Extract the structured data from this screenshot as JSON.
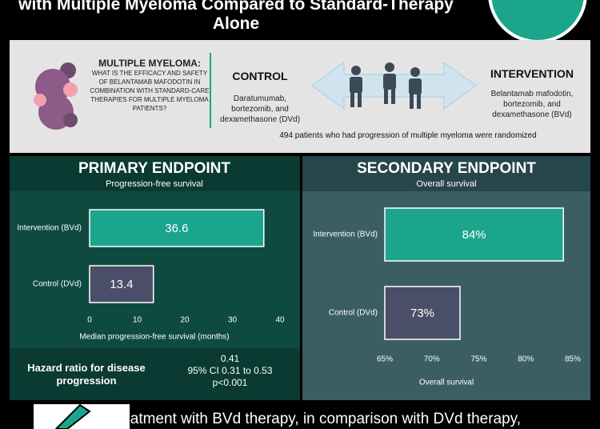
{
  "header": {
    "title": "with Multiple Myeloma Compared to Standard-Therapy Alone"
  },
  "study": {
    "question_title": "MULTIPLE MYELOMA:",
    "question": "WHAT IS THE EFFICACY AND SAFETY OF BELANTAMAB MAFODOTIN IN COMBINATION WITH STANDARD-CARE THERAPIES FOR MULTIPLE MYELOMA PATIENTS?",
    "control_title": "CONTROL",
    "control_text": "Daratumumab, bortezomib, and dexamethasone (DVd)",
    "intervention_title": "INTERVENTION",
    "intervention_text": "Belantamab mafodotin, bortezomib, and dexamethasone (BVd)",
    "population": "494 patients who had progression of multiple myeloma were randomized"
  },
  "chart_data": [
    {
      "type": "bar",
      "orientation": "horizontal",
      "title": "PRIMARY ENDPOINT",
      "subtitle": "Progression-free survival",
      "categories": [
        "Intervention (BVd)",
        "Control (DVd)"
      ],
      "values": [
        36.6,
        13.4
      ],
      "colors": [
        "#1ba58c",
        "#4a4e68"
      ],
      "xlabel": "Median progression-free survival (months)",
      "xlim": [
        0,
        40
      ],
      "xticks": [
        0,
        10,
        20,
        30,
        40
      ]
    },
    {
      "type": "bar",
      "orientation": "horizontal",
      "title": "SECONDARY ENDPOINT",
      "subtitle": "Overall survival",
      "categories": [
        "Intervention (BVd)",
        "Control (DVd)"
      ],
      "values": [
        84,
        73
      ],
      "value_labels": [
        "84%",
        "73%"
      ],
      "colors": [
        "#1ba58c",
        "#4a4e68"
      ],
      "xlabel": "Overall survival",
      "xlim": [
        65,
        85
      ],
      "xticks": [
        {
          "value": 65,
          "label": "65%"
        },
        {
          "value": 70,
          "label": "70%"
        },
        {
          "value": 75,
          "label": "75%"
        },
        {
          "value": 80,
          "label": "80%"
        },
        {
          "value": 85,
          "label": "85%"
        }
      ]
    }
  ],
  "hazard": {
    "label": "Hazard ratio for disease progression",
    "value": "0.41",
    "ci": "95% CI 0.31 to 0.53",
    "p": "p<0.001"
  },
  "footer": {
    "text": "Treatment with BVd therapy, in comparison with DVd therapy,"
  }
}
